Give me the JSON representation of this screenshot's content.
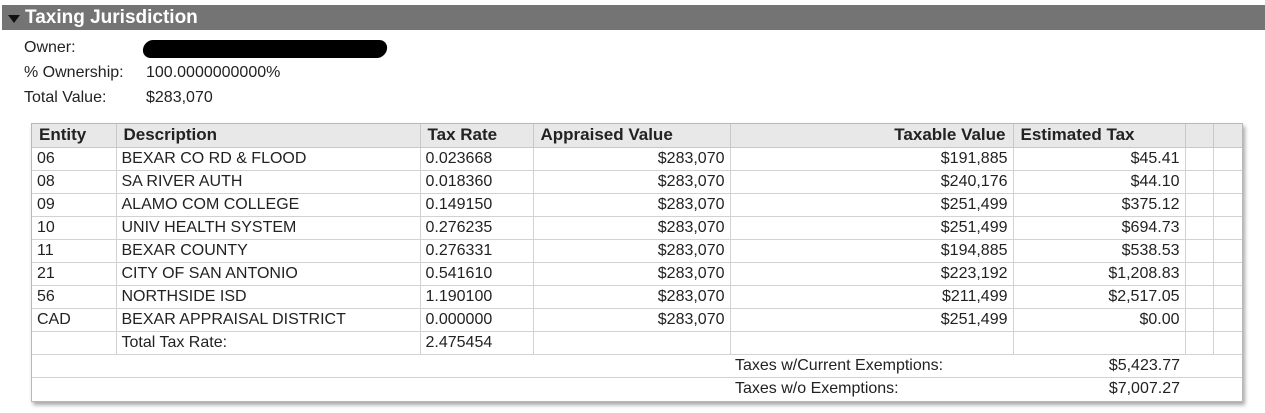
{
  "section": {
    "title": "Taxing Jurisdiction"
  },
  "info": {
    "owner_label": "Owner:",
    "ownership_label": "% Ownership:",
    "ownership_value": "100.0000000000%",
    "total_label": "Total Value:",
    "total_value": "$283,070"
  },
  "table": {
    "headers": {
      "entity": "Entity",
      "description": "Description",
      "tax_rate": "Tax Rate",
      "appraised": "Appraised Value",
      "taxable": "Taxable Value",
      "estimated": "Estimated Tax"
    },
    "rows": [
      {
        "entity": "06",
        "description": "BEXAR CO RD & FLOOD",
        "tax_rate": "0.023668",
        "appraised": "$283,070",
        "taxable": "$191,885",
        "estimated": "$45.41"
      },
      {
        "entity": "08",
        "description": "SA RIVER AUTH",
        "tax_rate": "0.018360",
        "appraised": "$283,070",
        "taxable": "$240,176",
        "estimated": "$44.10"
      },
      {
        "entity": "09",
        "description": "ALAMO COM COLLEGE",
        "tax_rate": "0.149150",
        "appraised": "$283,070",
        "taxable": "$251,499",
        "estimated": "$375.12"
      },
      {
        "entity": "10",
        "description": "UNIV HEALTH SYSTEM",
        "tax_rate": "0.276235",
        "appraised": "$283,070",
        "taxable": "$251,499",
        "estimated": "$694.73"
      },
      {
        "entity": "11",
        "description": "BEXAR COUNTY",
        "tax_rate": "0.276331",
        "appraised": "$283,070",
        "taxable": "$194,885",
        "estimated": "$538.53"
      },
      {
        "entity": "21",
        "description": "CITY OF SAN ANTONIO",
        "tax_rate": "0.541610",
        "appraised": "$283,070",
        "taxable": "$223,192",
        "estimated": "$1,208.83"
      },
      {
        "entity": "56",
        "description": "NORTHSIDE ISD",
        "tax_rate": "1.190100",
        "appraised": "$283,070",
        "taxable": "$211,499",
        "estimated": "$2,517.05"
      },
      {
        "entity": "CAD",
        "description": "BEXAR APPRAISAL DISTRICT",
        "tax_rate": "0.000000",
        "appraised": "$283,070",
        "taxable": "$251,499",
        "estimated": "$0.00"
      }
    ],
    "total_rate_label": "Total Tax Rate:",
    "total_rate_value": "2.475454",
    "current_exemptions_label": "Taxes w/Current Exemptions:",
    "current_exemptions_value": "$5,423.77",
    "no_exemptions_label": "Taxes w/o Exemptions:",
    "no_exemptions_value": "$7,007.27"
  }
}
